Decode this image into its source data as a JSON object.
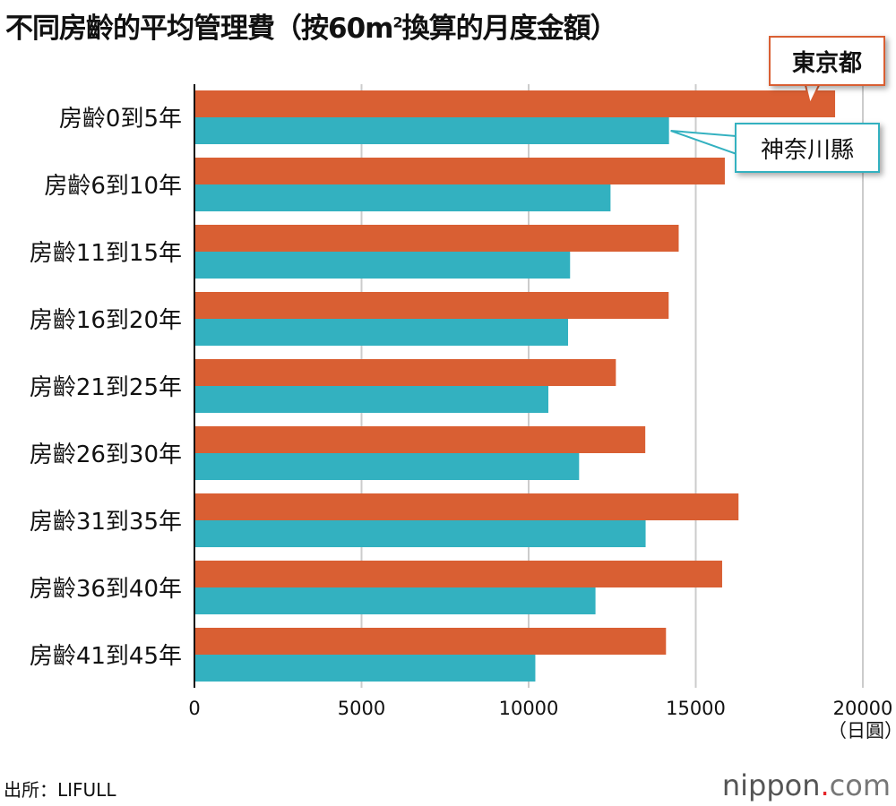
{
  "title_parts": {
    "pre": "不同房齡的平均管理費（按60m",
    "sup": "2",
    "post": "換算的月度金額）"
  },
  "source": "出所：LIFULL",
  "logo": {
    "main": "nippon",
    "dot": ".",
    "com": "com"
  },
  "colors": {
    "tokyo": "#d95f33",
    "kanagawa": "#33b1c0",
    "grid": "#cccccc"
  },
  "chart_data": {
    "type": "bar",
    "orientation": "horizontal",
    "categories": [
      "房齡0到5年",
      "房齡6到10年",
      "房齡11到15年",
      "房齡16到20年",
      "房齡21到25年",
      "房齡26到30年",
      "房齡31到35年",
      "房齡36到40年",
      "房齡41到45年"
    ],
    "series": [
      {
        "name": "東京都",
        "values": [
          19170,
          15870,
          14490,
          14190,
          12610,
          13490,
          16280,
          15790,
          14110
        ]
      },
      {
        "name": "神奈川縣",
        "values": [
          14200,
          12450,
          11240,
          11180,
          10590,
          11510,
          13500,
          12000,
          10200
        ]
      }
    ],
    "xlim": [
      0,
      20000
    ],
    "xticks": [
      "0",
      "5000",
      "10000",
      "15000",
      "20000"
    ],
    "xunit": "（日圓）",
    "grid": true,
    "legend": "callouts"
  }
}
